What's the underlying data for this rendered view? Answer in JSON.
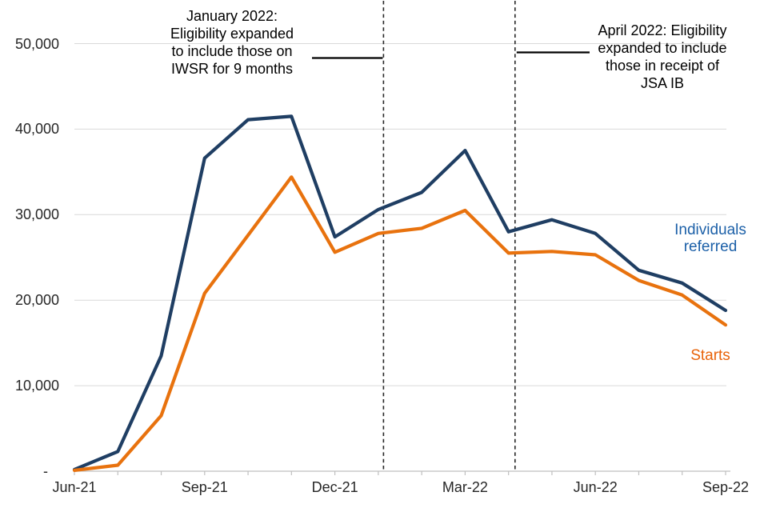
{
  "chart_data": {
    "type": "line",
    "title": "",
    "x": [
      "Jun-21",
      "Jul-21",
      "Aug-21",
      "Sep-21",
      "Oct-21",
      "Nov-21",
      "Dec-21",
      "Jan-22",
      "Feb-22",
      "Mar-22",
      "Apr-22",
      "May-22",
      "Jun-22",
      "Jul-22",
      "Aug-22",
      "Sep-22"
    ],
    "series": [
      {
        "name": "Individuals referred",
        "color": "#1F3E63",
        "label_color": "#1C60A8",
        "values": [
          200,
          2300,
          13500,
          36600,
          41100,
          41500,
          27400,
          30600,
          32600,
          37500,
          28000,
          29400,
          27800,
          23500,
          22000,
          18800
        ]
      },
      {
        "name": "Starts",
        "color": "#E8720E",
        "label_color": "#E8630A",
        "values": [
          100,
          700,
          6500,
          20800,
          27600,
          34400,
          25600,
          27800,
          28400,
          30500,
          25500,
          25700,
          25300,
          22300,
          20600,
          17100
        ]
      }
    ],
    "ylim": [
      0,
      50000
    ],
    "y_ticks": [
      {
        "value": 0,
        "label": "-"
      },
      {
        "value": 10000,
        "label": "10,000"
      },
      {
        "value": 20000,
        "label": "20,000"
      },
      {
        "value": 30000,
        "label": "30,000"
      },
      {
        "value": 40000,
        "label": "40,000"
      },
      {
        "value": 50000,
        "label": "50,000"
      }
    ],
    "x_ticks": [
      {
        "index": 0,
        "label": "Jun-21"
      },
      {
        "index": 3,
        "label": "Sep-21"
      },
      {
        "index": 6,
        "label": "Dec-21"
      },
      {
        "index": 9,
        "label": "Mar-22"
      },
      {
        "index": 12,
        "label": "Jun-22"
      },
      {
        "index": 15,
        "label": "Sep-22"
      }
    ],
    "grid": "horizontal",
    "legend_position": "inline-right",
    "annotations": [
      {
        "id": "jan-2022",
        "lines": [
          "January 2022:",
          "Eligibility expanded",
          "to include those on",
          "IWSR for 9 months"
        ],
        "event_month_offset": 7.12
      },
      {
        "id": "apr-2022",
        "lines": [
          "April 2022: Eligibility",
          "expanded to include",
          "those in receipt of",
          "JSA IB"
        ],
        "event_month_offset": 10.15
      }
    ]
  },
  "colors": {
    "gridline": "#D9D9D9",
    "axis": "#BFBFBF",
    "event_line": "#262626",
    "leader_line": "#000000",
    "tick_text": "#262626"
  }
}
